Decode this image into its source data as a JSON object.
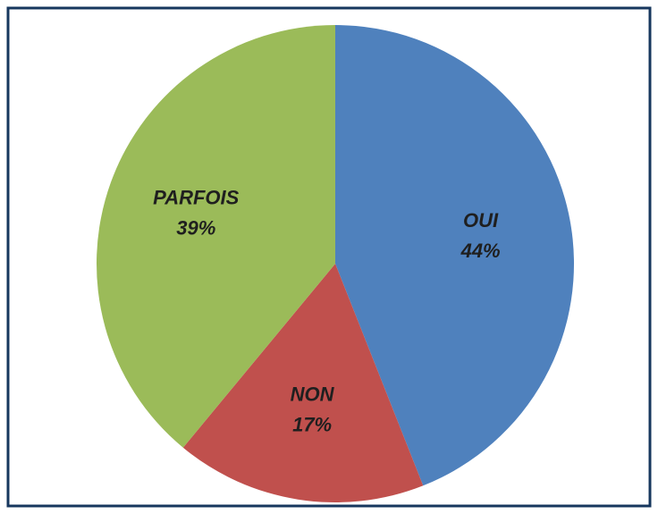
{
  "chart_data": {
    "type": "pie",
    "categories": [
      "OUI",
      "NON",
      "PARFOIS"
    ],
    "values": [
      44,
      17,
      39
    ],
    "value_labels": [
      "44%",
      "17%",
      "39%"
    ],
    "colors": [
      "#4f81bd",
      "#c0504d",
      "#9bbb59"
    ]
  }
}
